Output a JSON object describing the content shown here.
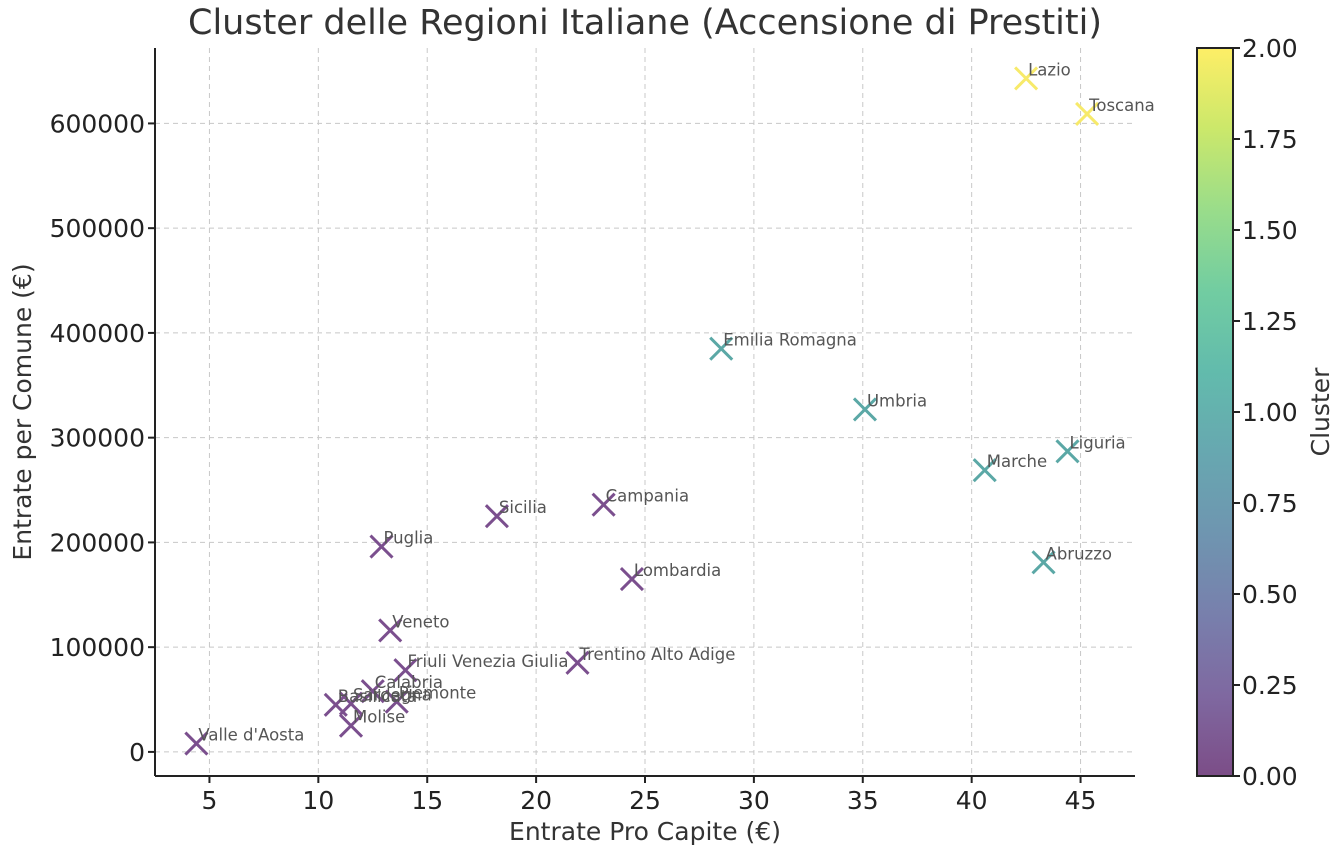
{
  "chart_data": {
    "type": "scatter",
    "title": "Cluster delle Regioni Italiane (Accensione di Prestiti)",
    "xlabel": "Entrate Pro Capite (€)",
    "ylabel": "Entrate per Comune (€)",
    "xlim": [
      2.5,
      47.5
    ],
    "ylim": [
      -23000,
      672000
    ],
    "xticks": [
      5,
      10,
      15,
      20,
      25,
      30,
      35,
      40,
      45
    ],
    "xtick_labels": [
      "5",
      "10",
      "15",
      "20",
      "25",
      "30",
      "35",
      "40",
      "45"
    ],
    "yticks": [
      0,
      100000,
      200000,
      300000,
      400000,
      500000,
      600000
    ],
    "ytick_labels": [
      "0",
      "100000",
      "200000",
      "300000",
      "400000",
      "500000",
      "600000"
    ],
    "grid": true,
    "marker": "x",
    "colorbar": {
      "label": "Cluster",
      "min": 0,
      "max": 2,
      "ticks": [
        0,
        0.25,
        0.5,
        0.75,
        1,
        1.25,
        1.5,
        1.75,
        2
      ],
      "tick_labels": [
        "0.00",
        "0.25",
        "0.50",
        "0.75",
        "1.00",
        "1.25",
        "1.50",
        "1.75",
        "2.00"
      ],
      "colormap": [
        "#440154",
        "#482878",
        "#3e4989",
        "#31688e",
        "#26828e",
        "#1f9e89",
        "#35b779",
        "#6ece58",
        "#b5de2b",
        "#fde725"
      ]
    },
    "cluster_colors": {
      "0": "#7b4f8e",
      "1": "#5ba8a6",
      "2": "#f7ea6a"
    },
    "points": [
      {
        "name": "Lazio",
        "x": 42.5,
        "y": 643000,
        "cluster": 2
      },
      {
        "name": "Toscana",
        "x": 45.3,
        "y": 609000,
        "cluster": 2
      },
      {
        "name": "Emilia Romagna",
        "x": 28.5,
        "y": 385000,
        "cluster": 1
      },
      {
        "name": "Umbria",
        "x": 35.1,
        "y": 327000,
        "cluster": 1
      },
      {
        "name": "Liguria",
        "x": 44.4,
        "y": 287000,
        "cluster": 1
      },
      {
        "name": "Marche",
        "x": 40.6,
        "y": 269000,
        "cluster": 1
      },
      {
        "name": "Abruzzo",
        "x": 43.3,
        "y": 181000,
        "cluster": 1
      },
      {
        "name": "Campania",
        "x": 23.1,
        "y": 236000,
        "cluster": 0
      },
      {
        "name": "Sicilia",
        "x": 18.2,
        "y": 225000,
        "cluster": 0
      },
      {
        "name": "Puglia",
        "x": 12.9,
        "y": 196000,
        "cluster": 0
      },
      {
        "name": "Lombardia",
        "x": 24.4,
        "y": 165000,
        "cluster": 0
      },
      {
        "name": "Veneto",
        "x": 13.3,
        "y": 116000,
        "cluster": 0
      },
      {
        "name": "Trentino Alto Adige",
        "x": 21.9,
        "y": 85000,
        "cluster": 0
      },
      {
        "name": "Friuli Venezia Giulia",
        "x": 14.0,
        "y": 78000,
        "cluster": 0
      },
      {
        "name": "Calabria",
        "x": 12.5,
        "y": 58000,
        "cluster": 0
      },
      {
        "name": "Piemonte",
        "x": 13.6,
        "y": 48000,
        "cluster": 0
      },
      {
        "name": "Sardegna",
        "x": 11.5,
        "y": 46000,
        "cluster": 0
      },
      {
        "name": "Basilicata",
        "x": 10.8,
        "y": 45000,
        "cluster": 0
      },
      {
        "name": "Molise",
        "x": 11.5,
        "y": 25000,
        "cluster": 0
      },
      {
        "name": "Valle d'Aosta",
        "x": 4.4,
        "y": 8000,
        "cluster": 0
      }
    ]
  }
}
